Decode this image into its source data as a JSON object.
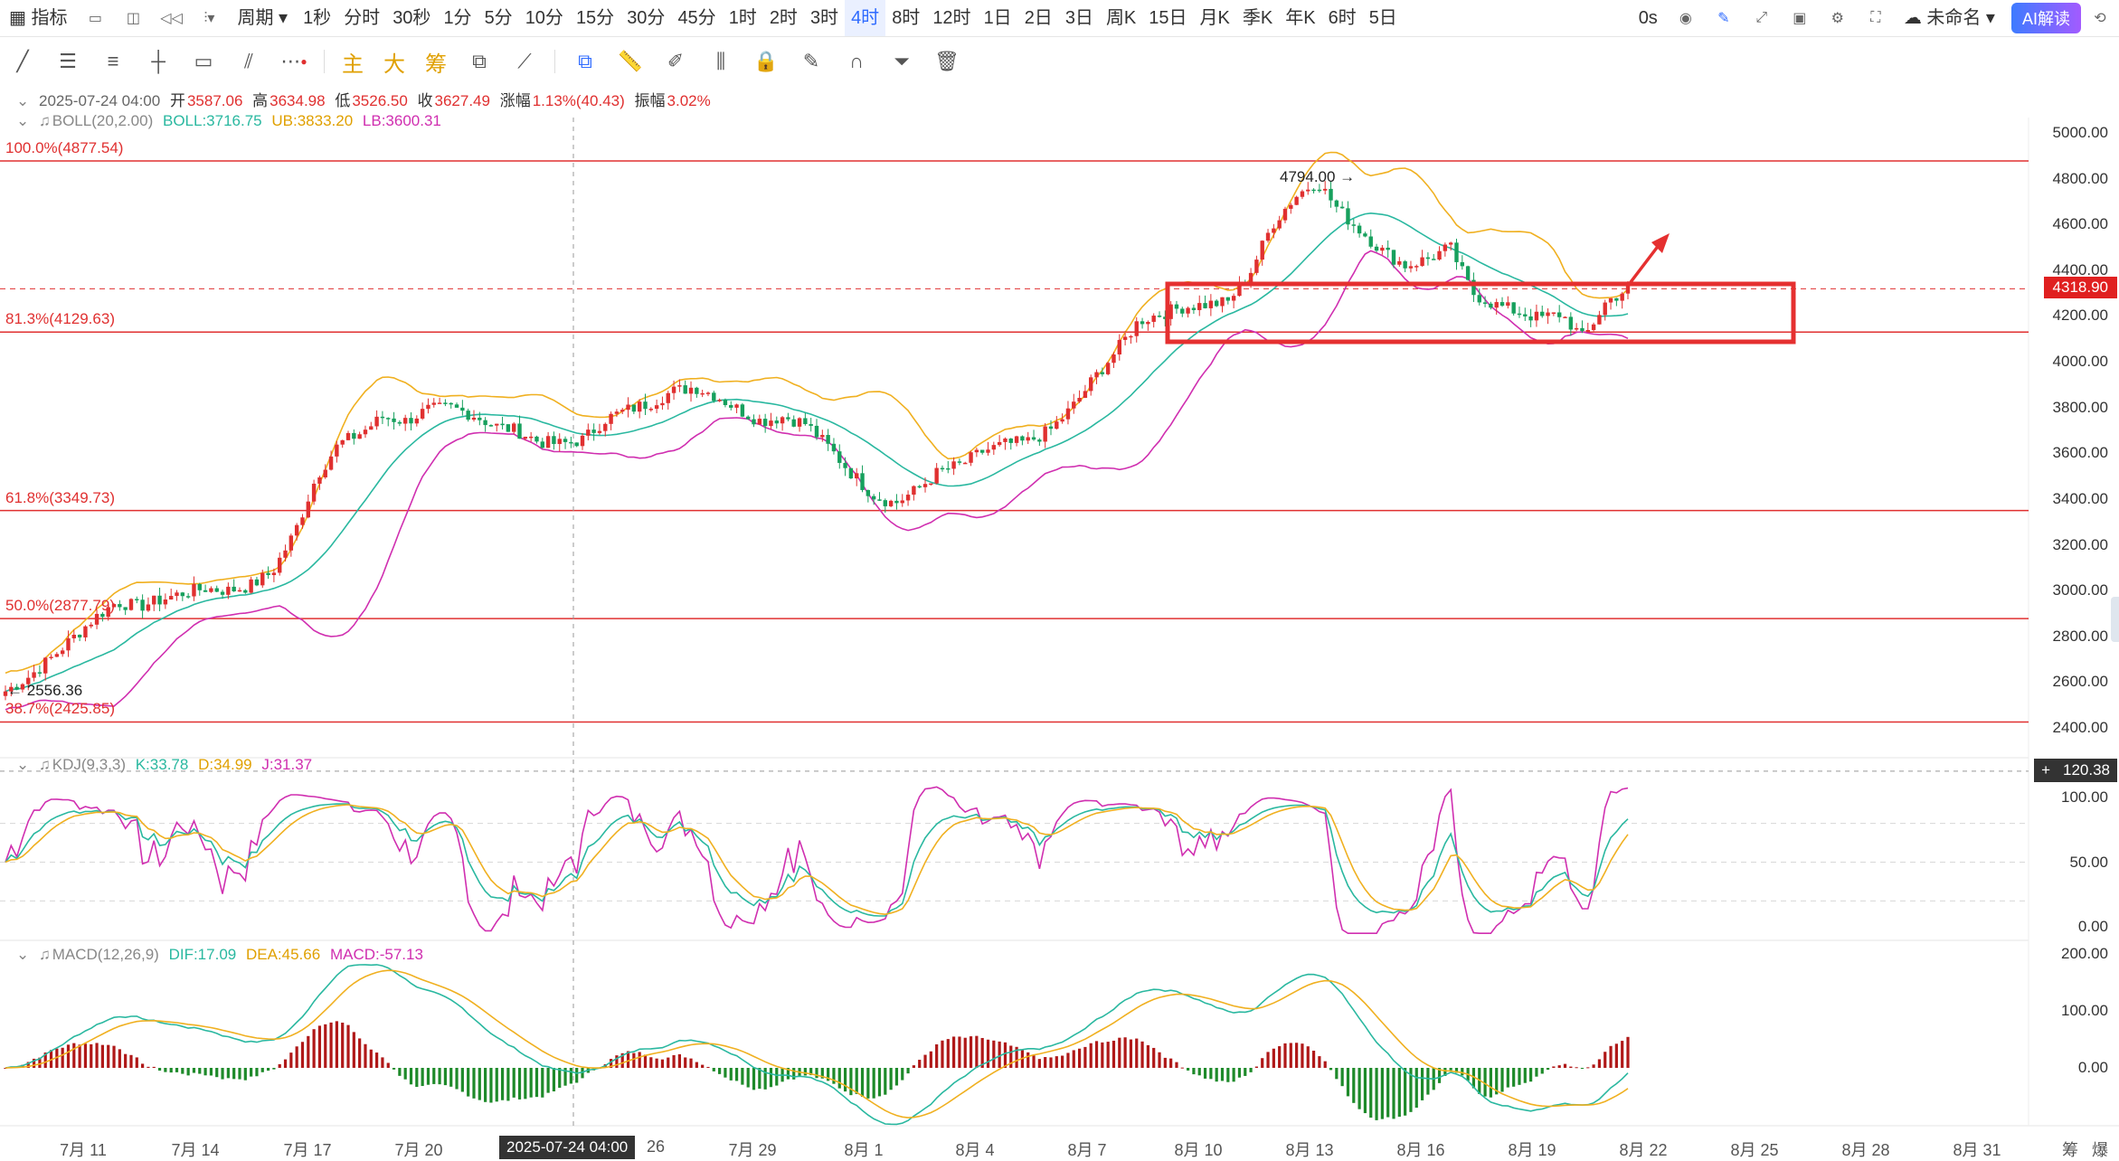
{
  "toolbar": {
    "indicator": "指标",
    "period": "周期",
    "periods": [
      "1秒",
      "分时",
      "30秒",
      "1分",
      "5分",
      "10分",
      "15分",
      "30分",
      "45分",
      "1时",
      "2时",
      "3时",
      "4时",
      "8时",
      "12时",
      "1日",
      "2日",
      "3日",
      "周K",
      "15日",
      "月K",
      "季K",
      "年K",
      "6时",
      "5日"
    ],
    "active_period": "4时",
    "latency": "0s",
    "layout_name": "未命名",
    "ai_label": "AI解读"
  },
  "drawtools": {
    "main": "主",
    "big": "大",
    "chip": "筹"
  },
  "candle_info": {
    "time": "2025-07-24 04:00",
    "open_label": "开",
    "open": "3587.06",
    "high_label": "高",
    "high": "3634.98",
    "low_label": "低",
    "low": "3526.50",
    "close_label": "收",
    "close": "3627.49",
    "change_label": "涨幅",
    "change": "1.13%(40.43)",
    "amp_label": "振幅",
    "amp": "3.02%"
  },
  "boll": {
    "name": "BOLL(20,2.00)",
    "mid": "BOLL:3716.75",
    "ub": "UB:3833.20",
    "lb": "LB:3600.31"
  },
  "kdj": {
    "name": "KDJ(9,3,3)",
    "k": "K:33.78",
    "d": "D:34.99",
    "j": "J:31.37"
  },
  "macd": {
    "name": "MACD(12,26,9)",
    "dif": "DIF:17.09",
    "dea": "DEA:45.66",
    "macd": "MACD:-57.13"
  },
  "price_axis": [
    "5000.00",
    "4800.00",
    "4600.00",
    "4400.00",
    "4200.00",
    "4000.00",
    "3800.00",
    "3600.00",
    "3400.00",
    "3200.00",
    "3000.00",
    "2800.00",
    "2600.00",
    "2400.00"
  ],
  "kdj_axis": [
    "100.00",
    "50.00",
    "0.00"
  ],
  "macd_axis": [
    "200.00",
    "100.00",
    "0.00"
  ],
  "current_price": "4318.90",
  "crosshair_value": "120.38",
  "crosshair_date": "2025-07-24 04:00",
  "fib_levels": [
    {
      "label": "100.0%(4877.54)",
      "value": 4877.54
    },
    {
      "label": "81.3%(4129.63)",
      "value": 4129.63
    },
    {
      "label": "61.8%(3349.73)",
      "value": 3349.73
    },
    {
      "label": "50.0%(2877.79)",
      "value": 2877.79
    },
    {
      "label": "38.7%(2425.85)",
      "value": 2425.85
    }
  ],
  "high_marker": "4794.00",
  "low_marker": "2556.36",
  "dates": [
    "7月 11",
    "7月 14",
    "7月 17",
    "7月 20",
    "26",
    "7月 29",
    "8月 1",
    "8月 4",
    "8月 7",
    "8月 10",
    "8月 13",
    "8月 16",
    "8月 19",
    "8月 22",
    "8月 25",
    "8月 28",
    "8月 31"
  ],
  "right_corner": [
    "筹",
    "爆"
  ],
  "colors": {
    "up": "#e03030",
    "down": "#17a05d",
    "boll_mid": "#2ab8a0",
    "boll_ub": "#f0b020",
    "boll_lb": "#d02fb0",
    "fib": "#e03030"
  },
  "chart_data": {
    "type": "candlestick",
    "close_path": [
      2560,
      2620,
      2700,
      2790,
      2880,
      2950,
      2930,
      2960,
      2990,
      3010,
      3000,
      3020,
      3080,
      3250,
      3500,
      3640,
      3690,
      3760,
      3740,
      3790,
      3800,
      3770,
      3720,
      3700,
      3650,
      3640,
      3660,
      3750,
      3790,
      3820,
      3870,
      3890,
      3850,
      3790,
      3740,
      3760,
      3730,
      3630,
      3520,
      3420,
      3380,
      3440,
      3520,
      3550,
      3610,
      3640,
      3650,
      3700,
      3800,
      3930,
      4050,
      4180,
      4210,
      4240,
      4250,
      4260,
      4390,
      4600,
      4720,
      4790,
      4660,
      4570,
      4480,
      4420,
      4450,
      4500,
      4300,
      4250,
      4220,
      4190,
      4210,
      4100,
      4260,
      4320
    ]
  }
}
